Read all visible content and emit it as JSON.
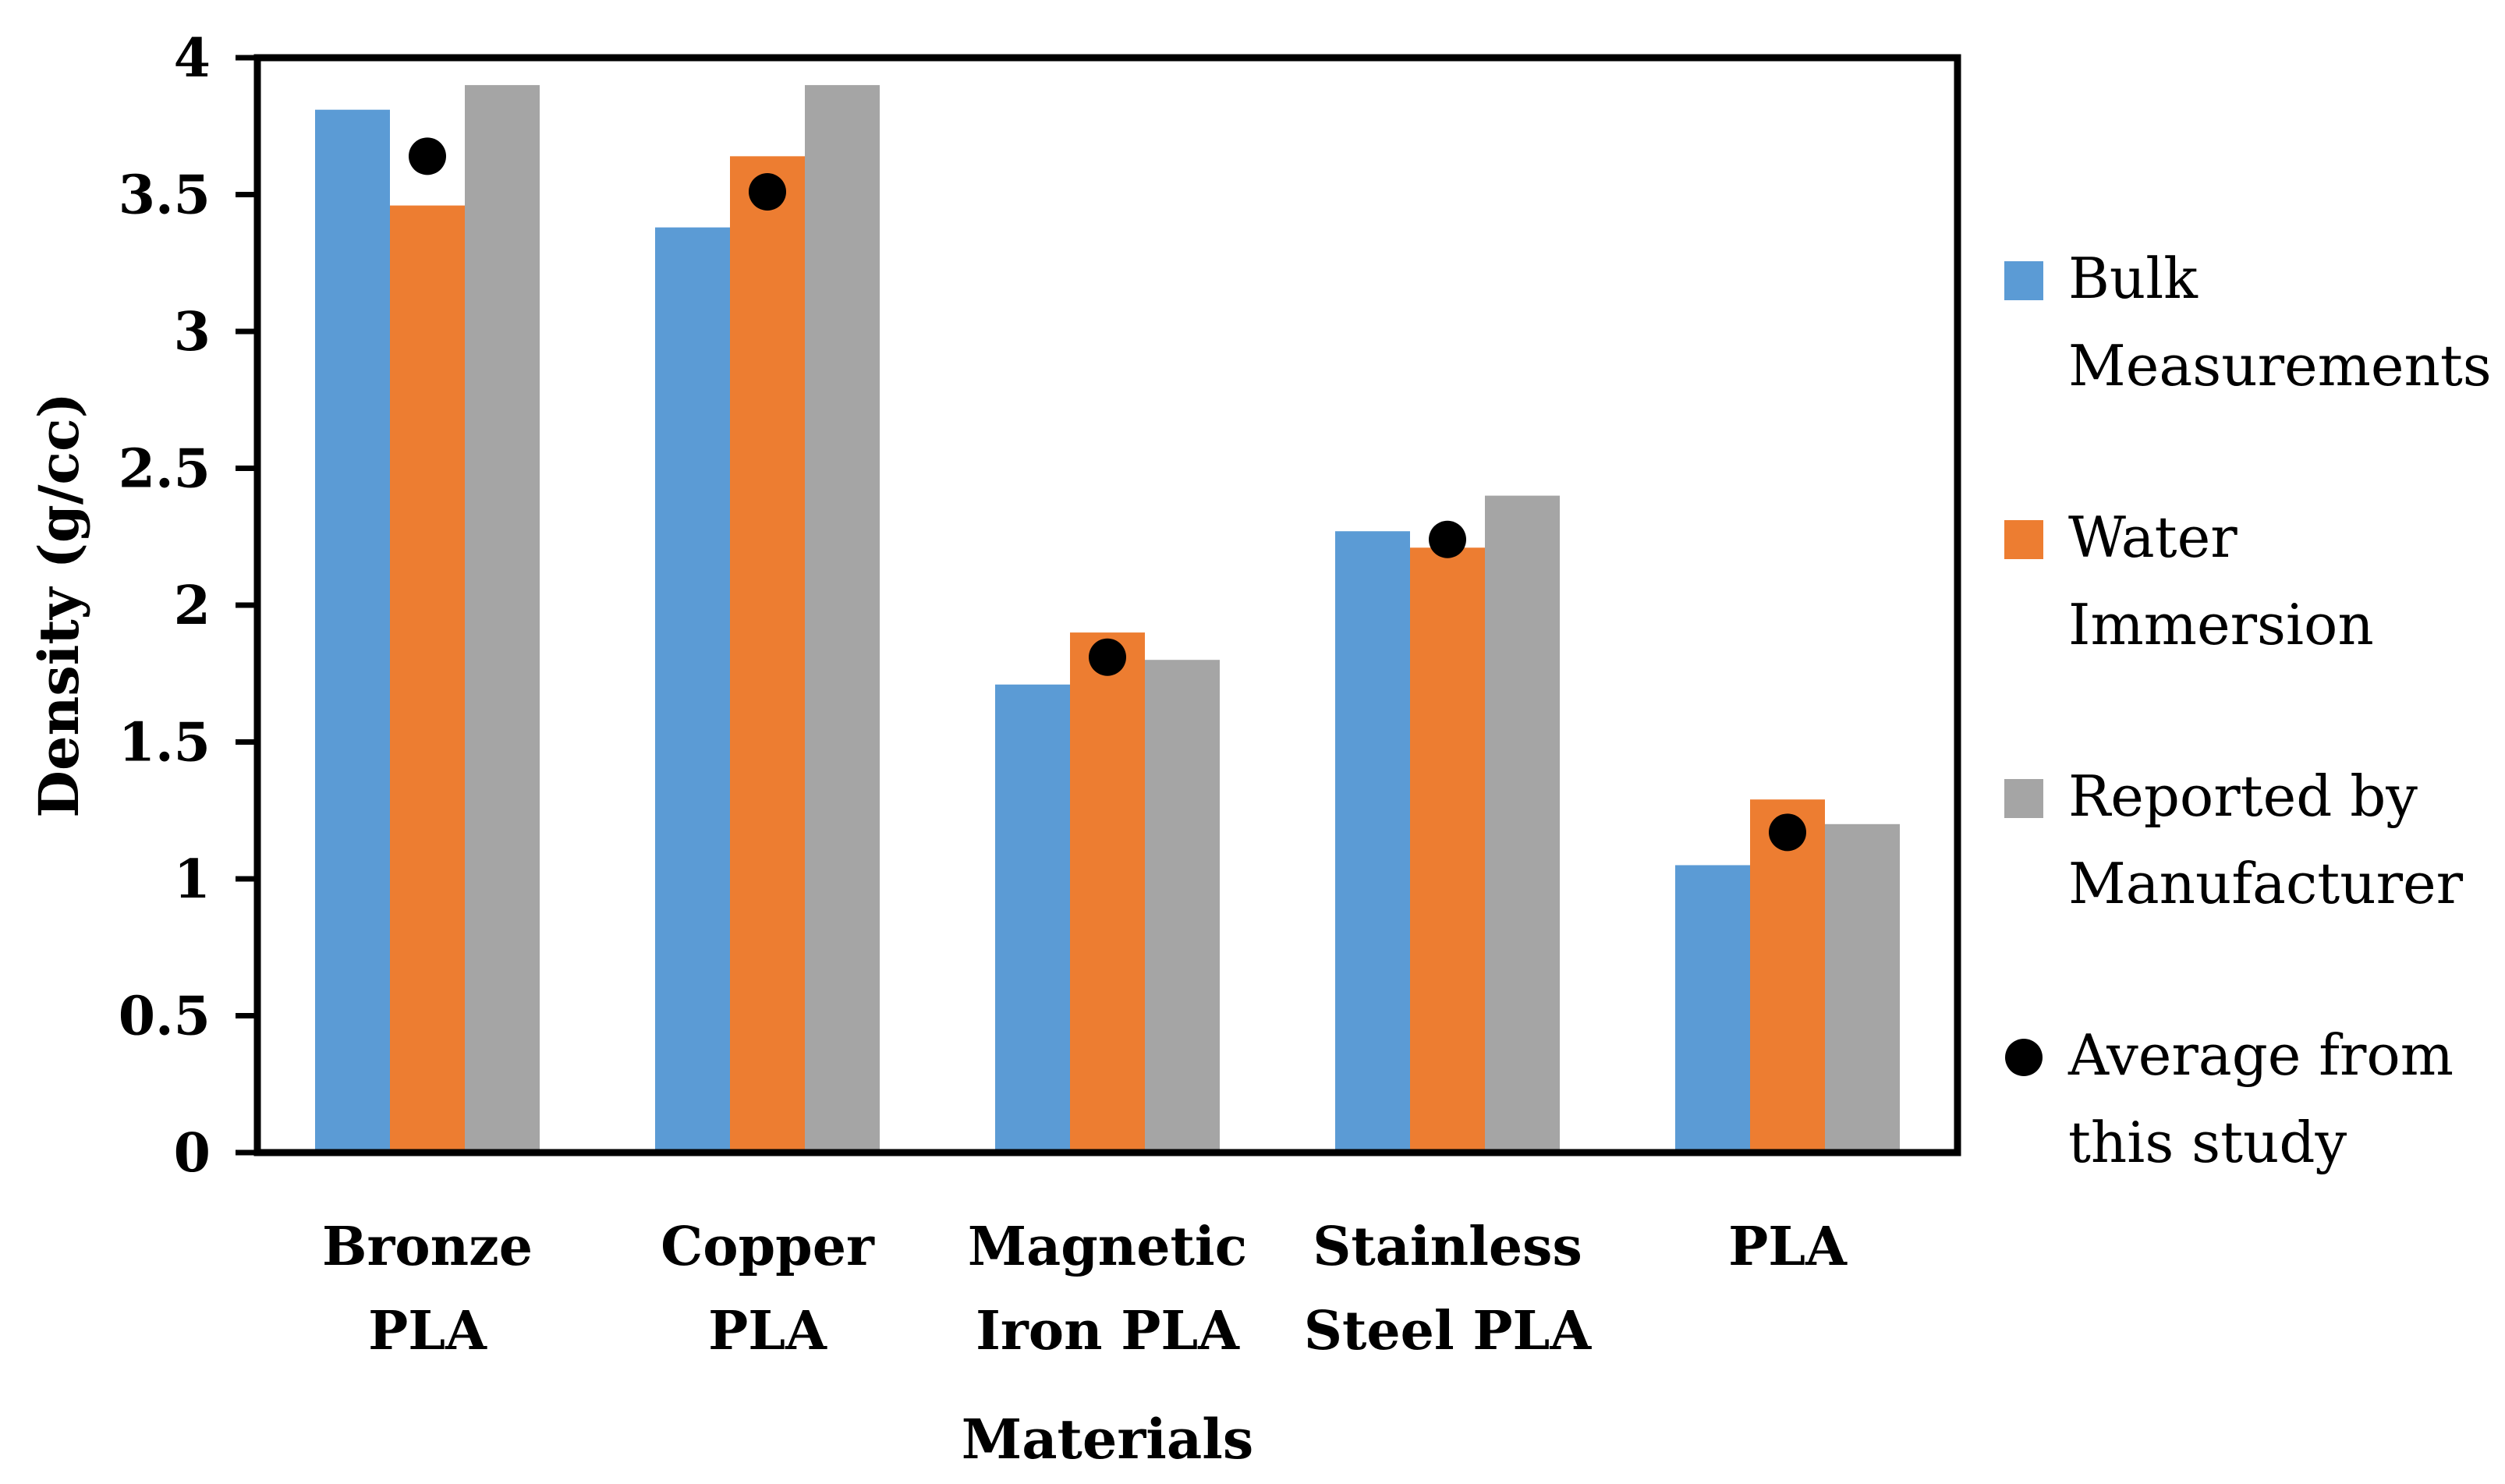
{
  "chart_data": {
    "type": "bar",
    "title": "",
    "xlabel": "Materials",
    "ylabel": "Density (g/cc)",
    "ylim": [
      0,
      4
    ],
    "yticks": [
      "0",
      "0.5",
      "1",
      "1.5",
      "2",
      "2.5",
      "3",
      "3.5",
      "4"
    ],
    "grid": false,
    "legend_position": "right",
    "categories": [
      [
        "Bronze",
        "PLA"
      ],
      [
        "Copper",
        "PLA"
      ],
      [
        "Magnetic",
        "Iron PLA"
      ],
      [
        "Stainless",
        "Steel PLA"
      ],
      [
        "PLA"
      ]
    ],
    "series": [
      {
        "name": "Bulk Measurements",
        "legend_lines": [
          "Bulk",
          "Measurements"
        ],
        "color": "#5B9BD5",
        "values": [
          3.81,
          3.38,
          1.71,
          2.27,
          1.05
        ]
      },
      {
        "name": "Water Immersion",
        "legend_lines": [
          "Water",
          "Immersion"
        ],
        "color": "#ED7D31",
        "values": [
          3.46,
          3.64,
          1.9,
          2.21,
          1.29
        ]
      },
      {
        "name": "Reported by Manufacturer",
        "legend_lines": [
          "Reported by",
          "Manufacturer"
        ],
        "color": "#A5A5A5",
        "values": [
          3.9,
          3.9,
          1.8,
          2.4,
          1.2
        ]
      }
    ],
    "points": {
      "name": "Average from this study",
      "legend_lines": [
        "Average from",
        "this study"
      ],
      "color": "#000000",
      "values": [
        3.64,
        3.51,
        1.81,
        2.24,
        1.17
      ]
    }
  }
}
